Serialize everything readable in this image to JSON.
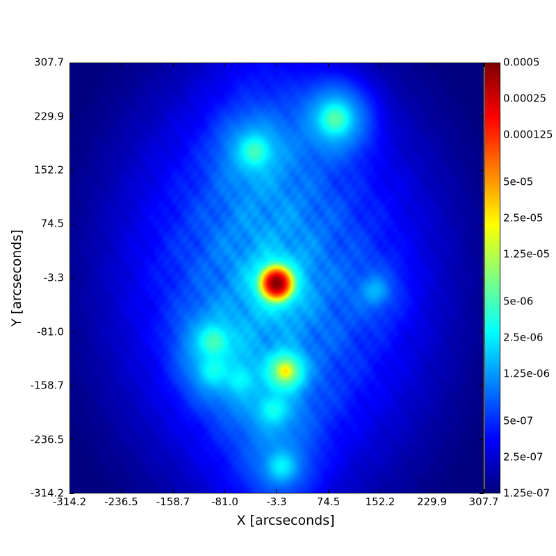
{
  "chart_data": {
    "type": "heatmap",
    "colormap": "jet",
    "xlabel": "X [arcseconds]",
    "ylabel": "Y [arcseconds]",
    "xlim": [
      -314.2,
      307.7
    ],
    "ylim": [
      -314.2,
      307.7
    ],
    "x_ticks": [
      "-314.2",
      "-236.5",
      "-158.7",
      "-81.0",
      "-3.3",
      "74.5",
      "152.2",
      "229.9",
      "307.7"
    ],
    "y_ticks": [
      "-314.2",
      "-236.5",
      "-158.7",
      "-81.0",
      "-3.3",
      "74.5",
      "152.2",
      "229.9",
      "307.7"
    ],
    "colorbar": {
      "scale": "log",
      "range": [
        1.25e-07,
        0.0005
      ],
      "tick_labels": [
        "1.25e-07",
        "2.5e-07",
        "5e-07",
        "1.25e-06",
        "2.5e-06",
        "5e-06",
        "1.25e-05",
        "2.5e-05",
        "5e-05",
        "0.000125",
        "0.00025",
        "0.0005"
      ],
      "tick_values": [
        1.25e-07,
        2.5e-07,
        5e-07,
        1.25e-06,
        2.5e-06,
        5e-06,
        1.25e-05,
        2.5e-05,
        5e-05,
        0.000125,
        0.00025,
        0.0005
      ]
    },
    "sources": [
      {
        "x": -3.3,
        "y": -11,
        "peak": 0.0005
      },
      {
        "x": -36,
        "y": 180,
        "peak": 3e-06
      },
      {
        "x": 85,
        "y": 227,
        "peak": 4e-06
      },
      {
        "x": -98,
        "y": -95,
        "peak": 3e-06
      },
      {
        "x": 10,
        "y": -138,
        "peak": 2e-05
      },
      {
        "x": -8,
        "y": -194,
        "peak": 1.8e-06
      },
      {
        "x": 4,
        "y": -276,
        "peak": 1.6e-06
      },
      {
        "x": 145,
        "y": -22,
        "peak": 8e-07
      },
      {
        "x": -99,
        "y": -138,
        "peak": 1.5e-06
      },
      {
        "x": -58,
        "y": -150,
        "peak": 1.2e-06
      }
    ]
  }
}
